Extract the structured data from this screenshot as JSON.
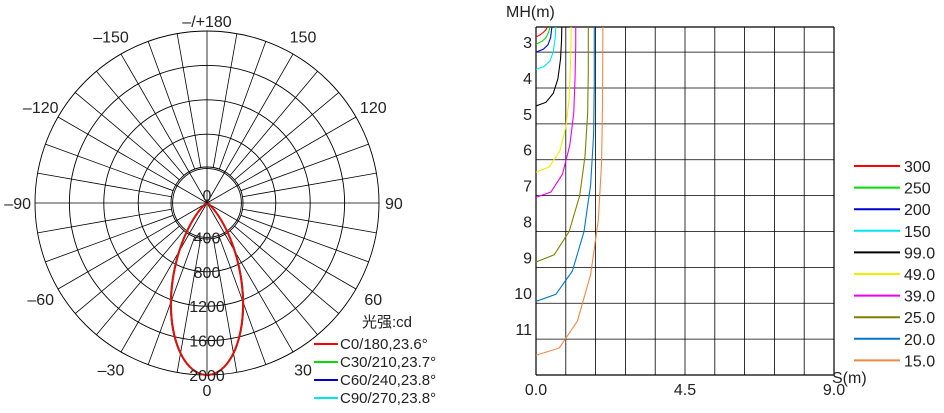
{
  "chart_data": [
    {
      "type": "polar",
      "angle_ticks": [
        {
          "value": "0",
          "angle": 0
        },
        {
          "value": "30",
          "angle": 30
        },
        {
          "value": "60",
          "angle": 60
        },
        {
          "value": "90",
          "angle": 90
        },
        {
          "value": "120",
          "angle": 120
        },
        {
          "value": "150",
          "angle": 150
        },
        {
          "value": "–/+180",
          "angle": 180
        },
        {
          "value": "–150",
          "angle": -150
        },
        {
          "value": "–120",
          "angle": -120
        },
        {
          "value": "–90",
          "angle": -90
        },
        {
          "value": "–60",
          "angle": -60
        },
        {
          "value": "–30",
          "angle": -30
        }
      ],
      "radial_max": 2000,
      "radial_ticks": [
        "0",
        "400",
        "800",
        "1200",
        "1600",
        "2000"
      ],
      "radial_tick_values": [
        0,
        400,
        800,
        1200,
        1600,
        2000
      ],
      "unit_label": "光强:cd",
      "legend": [
        {
          "label": "C0/180,23.6°",
          "color": "#ff0000"
        },
        {
          "label": "C30/210,23.7°",
          "color": "#00dd00"
        },
        {
          "label": "C60/240,23.8°",
          "color": "#0000cc"
        },
        {
          "label": "C90/270,23.8°",
          "color": "#00e5ee"
        }
      ],
      "series": [
        {
          "name": "C0/180,23.6°",
          "color": "#ff0000",
          "peak": 2000,
          "half_angle": 23.6
        },
        {
          "name": "C30/210,23.7°",
          "color": "#00dd00",
          "peak": 2000,
          "half_angle": 23.7
        },
        {
          "name": "C60/240,23.8°",
          "color": "#0000cc",
          "peak": 2000,
          "half_angle": 23.8
        },
        {
          "name": "C90/270,23.8°",
          "color": "#00e5ee",
          "peak": 2000,
          "half_angle": 23.8
        }
      ]
    },
    {
      "type": "line",
      "ylabel": "MH(m)",
      "xlabel": "S(m)",
      "x_ticks": [
        {
          "label": "0.0",
          "value": 0
        },
        {
          "label": "4.5",
          "value": 4.5
        },
        {
          "label": "9.0",
          "value": 9
        }
      ],
      "y_ticks": [
        {
          "label": "3",
          "value": 3
        },
        {
          "label": "4",
          "value": 4
        },
        {
          "label": "5",
          "value": 5
        },
        {
          "label": "6",
          "value": 6
        },
        {
          "label": "7",
          "value": 7
        },
        {
          "label": "8",
          "value": 8
        },
        {
          "label": "9",
          "value": 9
        },
        {
          "label": "10",
          "value": 10
        },
        {
          "label": "11",
          "value": 11
        }
      ],
      "xlim": [
        0,
        9
      ],
      "ylim": [
        2.3,
        12
      ],
      "series": [
        {
          "name": "300",
          "color": "#ff0000",
          "points": [
            [
              0.0,
              2.58
            ],
            [
              0.12,
              2.52
            ],
            [
              0.22,
              2.45
            ],
            [
              0.3,
              2.38
            ],
            [
              0.34,
              2.3
            ]
          ]
        },
        {
          "name": "250",
          "color": "#00dd00",
          "points": [
            [
              0.0,
              2.78
            ],
            [
              0.18,
              2.7
            ],
            [
              0.3,
              2.6
            ],
            [
              0.38,
              2.45
            ],
            [
              0.42,
              2.3
            ]
          ]
        },
        {
          "name": "200",
          "color": "#0000cc",
          "points": [
            [
              0.0,
              3.0
            ],
            [
              0.22,
              2.92
            ],
            [
              0.36,
              2.8
            ],
            [
              0.44,
              2.6
            ],
            [
              0.48,
              2.3
            ]
          ]
        },
        {
          "name": "150",
          "color": "#00e5ee",
          "points": [
            [
              0.0,
              3.48
            ],
            [
              0.25,
              3.4
            ],
            [
              0.42,
              3.25
            ],
            [
              0.52,
              3.0
            ],
            [
              0.58,
              2.6
            ],
            [
              0.6,
              2.3
            ]
          ]
        },
        {
          "name": "99.0",
          "color": "#000000",
          "points": [
            [
              0.0,
              4.5
            ],
            [
              0.3,
              4.4
            ],
            [
              0.52,
              4.15
            ],
            [
              0.66,
              3.75
            ],
            [
              0.74,
              3.2
            ],
            [
              0.77,
              2.7
            ],
            [
              0.78,
              2.3
            ]
          ]
        },
        {
          "name": "49.0",
          "color": "#eeee00",
          "points": [
            [
              0.0,
              6.35
            ],
            [
              0.4,
              6.2
            ],
            [
              0.72,
              5.75
            ],
            [
              0.9,
              5.1
            ],
            [
              1.0,
              4.3
            ],
            [
              1.04,
              3.4
            ],
            [
              1.06,
              2.6
            ],
            [
              1.06,
              2.3
            ]
          ]
        },
        {
          "name": "39.0",
          "color": "#ee00ee",
          "points": [
            [
              0.0,
              7.05
            ],
            [
              0.45,
              6.9
            ],
            [
              0.8,
              6.4
            ],
            [
              1.02,
              5.6
            ],
            [
              1.14,
              4.7
            ],
            [
              1.18,
              3.7
            ],
            [
              1.2,
              2.8
            ],
            [
              1.2,
              2.3
            ]
          ]
        },
        {
          "name": "25.0",
          "color": "#808000",
          "points": [
            [
              0.0,
              8.85
            ],
            [
              0.55,
              8.65
            ],
            [
              1.0,
              8.0
            ],
            [
              1.32,
              7.0
            ],
            [
              1.48,
              5.9
            ],
            [
              1.56,
              4.7
            ],
            [
              1.58,
              3.5
            ],
            [
              1.58,
              2.3
            ]
          ]
        },
        {
          "name": "20.0",
          "color": "#0077cc",
          "points": [
            [
              0.0,
              9.95
            ],
            [
              0.6,
              9.75
            ],
            [
              1.1,
              9.1
            ],
            [
              1.45,
              8.0
            ],
            [
              1.65,
              6.7
            ],
            [
              1.74,
              5.3
            ],
            [
              1.76,
              3.9
            ],
            [
              1.76,
              2.3
            ]
          ]
        },
        {
          "name": "15.0",
          "color": "#ee8844",
          "points": [
            [
              0.0,
              11.45
            ],
            [
              0.7,
              11.25
            ],
            [
              1.25,
              10.5
            ],
            [
              1.65,
              9.2
            ],
            [
              1.88,
              7.7
            ],
            [
              1.98,
              6.1
            ],
            [
              2.01,
              4.4
            ],
            [
              2.02,
              2.3
            ]
          ]
        }
      ]
    }
  ]
}
